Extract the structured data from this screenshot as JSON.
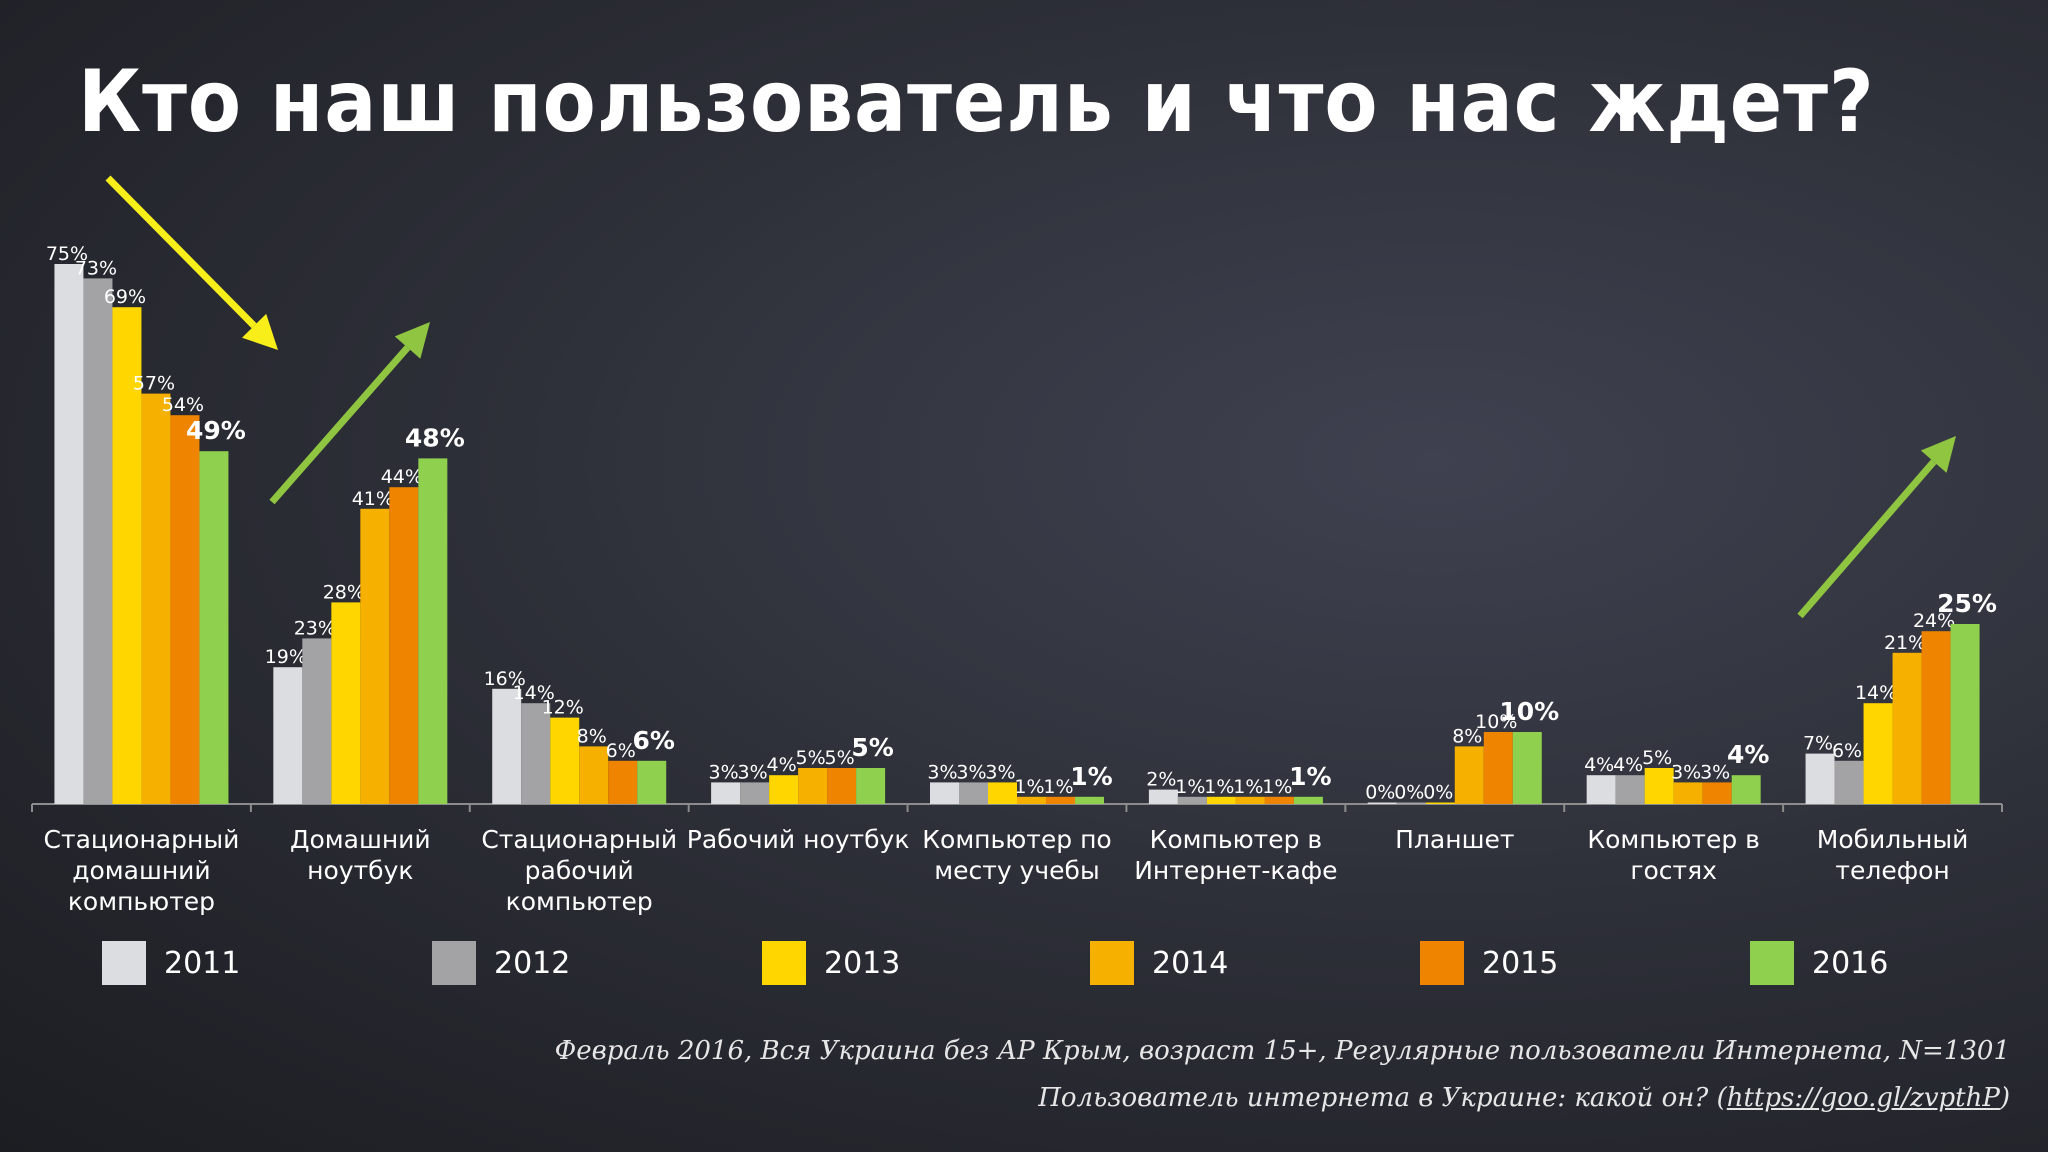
{
  "title": "Кто наш пользователь и что нас ждет?",
  "footnote": {
    "line1": "Февраль 2016, Вся Украина без АР Крым, возраст 15+, Регулярные пользователи Интернета, N=1301",
    "line2_prefix": "Пользователь интернета в Украине: какой он? (",
    "line2_link": "https://goo.gl/zvpthP",
    "line2_suffix": ")"
  },
  "chart_data": {
    "type": "bar",
    "categories": [
      [
        "Стационарный",
        "домашний",
        "компьютер"
      ],
      [
        "Домашний",
        "ноутбук"
      ],
      [
        "Стационарный",
        "рабочий",
        "компьютер"
      ],
      [
        "Рабочий ноутбук"
      ],
      [
        "Компьютер по",
        "месту учебы"
      ],
      [
        "Компьютер в",
        "Интернет-кафе"
      ],
      [
        "Планшет"
      ],
      [
        "Компьютер в",
        "гостях"
      ],
      [
        "Мобильный",
        "телефон"
      ]
    ],
    "series": [
      {
        "name": "2011",
        "color": "#dcdde0",
        "values": [
          75,
          19,
          16,
          3,
          3,
          2,
          0,
          4,
          7
        ]
      },
      {
        "name": "2012",
        "color": "#a3a3a5",
        "values": [
          73,
          23,
          14,
          3,
          3,
          1,
          0,
          4,
          6
        ]
      },
      {
        "name": "2013",
        "color": "#ffd600",
        "values": [
          69,
          28,
          12,
          4,
          3,
          1,
          0,
          5,
          14
        ]
      },
      {
        "name": "2014",
        "color": "#f5b000",
        "values": [
          57,
          41,
          8,
          5,
          1,
          1,
          8,
          3,
          21
        ]
      },
      {
        "name": "2015",
        "color": "#ee8400",
        "values": [
          54,
          44,
          6,
          5,
          1,
          1,
          10,
          3,
          24
        ]
      },
      {
        "name": "2016",
        "color": "#8fd14f",
        "values": [
          49,
          48,
          6,
          5,
          1,
          1,
          10,
          4,
          25
        ]
      }
    ],
    "ylim": [
      0,
      75
    ],
    "value_suffix": "%",
    "legend_position": "bottom",
    "grid": false,
    "annotations": [
      {
        "type": "arrow",
        "direction": "down",
        "color": "#f7ee1a",
        "near_category": 0
      },
      {
        "type": "arrow",
        "direction": "up",
        "color": "#8fc540",
        "near_category": 1
      },
      {
        "type": "arrow",
        "direction": "up",
        "color": "#8fc540",
        "near_category": 8
      }
    ]
  }
}
